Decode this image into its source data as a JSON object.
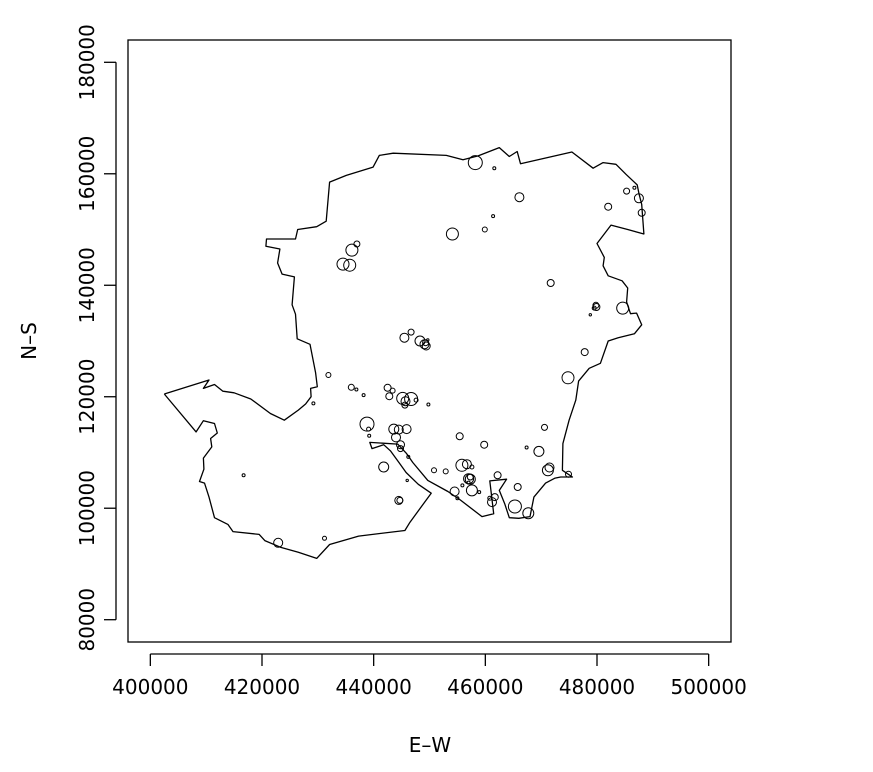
{
  "chart_data": {
    "type": "scatter",
    "title": "",
    "xlabel": "E–W",
    "ylabel": "N–S",
    "xlim": [
      396000,
      504000
    ],
    "ylim": [
      76000,
      184000
    ],
    "xticks": [
      400000,
      420000,
      440000,
      460000,
      480000,
      500000
    ],
    "yticks": [
      80000,
      100000,
      120000,
      140000,
      160000,
      180000
    ],
    "x_tick_labels": [
      "400000",
      "420000",
      "440000",
      "460000",
      "480000",
      "500000"
    ],
    "y_tick_labels": [
      "80000",
      "100000",
      "120000",
      "140000",
      "160000",
      "180000"
    ],
    "grid": false,
    "legend": "none",
    "boundary": [
      [
        402500,
        120500
      ],
      [
        410500,
        123000
      ],
      [
        409500,
        121500
      ],
      [
        411500,
        122200
      ],
      [
        413000,
        121000
      ],
      [
        415000,
        120700
      ],
      [
        418000,
        119600
      ],
      [
        421500,
        117000
      ],
      [
        424000,
        115800
      ],
      [
        426500,
        117600
      ],
      [
        427800,
        118700
      ],
      [
        428800,
        120000
      ],
      [
        428700,
        121500
      ],
      [
        429900,
        121800
      ],
      [
        429600,
        124300
      ],
      [
        428600,
        129400
      ],
      [
        426300,
        130400
      ],
      [
        426000,
        134800
      ],
      [
        425400,
        136500
      ],
      [
        425800,
        141500
      ],
      [
        423600,
        142000
      ],
      [
        422800,
        144000
      ],
      [
        423200,
        146500
      ],
      [
        420700,
        147000
      ],
      [
        420800,
        148300
      ],
      [
        426000,
        148300
      ],
      [
        426400,
        150000
      ],
      [
        429800,
        150500
      ],
      [
        431500,
        151500
      ],
      [
        432100,
        158500
      ],
      [
        435100,
        159700
      ],
      [
        439900,
        161200
      ],
      [
        441000,
        163300
      ],
      [
        443500,
        163700
      ],
      [
        453000,
        163300
      ],
      [
        456000,
        162500
      ],
      [
        458700,
        163200
      ],
      [
        462500,
        164700
      ],
      [
        464300,
        163100
      ],
      [
        465700,
        164000
      ],
      [
        466300,
        161800
      ],
      [
        475500,
        163900
      ],
      [
        479300,
        161000
      ],
      [
        481100,
        162000
      ],
      [
        483400,
        161700
      ],
      [
        485200,
        159900
      ],
      [
        487200,
        158000
      ],
      [
        487500,
        156500
      ],
      [
        488000,
        154500
      ],
      [
        488400,
        149200
      ],
      [
        485500,
        150000
      ],
      [
        482500,
        150800
      ],
      [
        480000,
        147500
      ],
      [
        481300,
        145000
      ],
      [
        481100,
        143500
      ],
      [
        482000,
        141700
      ],
      [
        484500,
        140800
      ],
      [
        485500,
        139500
      ],
      [
        485300,
        137000
      ],
      [
        486000,
        134900
      ],
      [
        487100,
        135000
      ],
      [
        488000,
        132900
      ],
      [
        486700,
        131300
      ],
      [
        483800,
        130600
      ],
      [
        482000,
        130000
      ],
      [
        480600,
        126000
      ],
      [
        478600,
        125100
      ],
      [
        476700,
        122800
      ],
      [
        476200,
        119400
      ],
      [
        475000,
        115800
      ],
      [
        473900,
        111600
      ],
      [
        473800,
        106800
      ],
      [
        475600,
        105600
      ],
      [
        473500,
        105600
      ],
      [
        472500,
        105400
      ],
      [
        470800,
        104500
      ],
      [
        468700,
        102000
      ],
      [
        468000,
        98500
      ],
      [
        466000,
        98200
      ],
      [
        464300,
        98300
      ],
      [
        463500,
        100700
      ],
      [
        462500,
        103200
      ],
      [
        463800,
        105200
      ],
      [
        460800,
        104900
      ],
      [
        461500,
        99000
      ],
      [
        459400,
        98500
      ],
      [
        455500,
        101500
      ],
      [
        453300,
        103000
      ],
      [
        449700,
        105000
      ],
      [
        447000,
        108200
      ],
      [
        445900,
        109800
      ],
      [
        444300,
        111500
      ],
      [
        439300,
        111800
      ],
      [
        439700,
        110700
      ],
      [
        441800,
        111400
      ],
      [
        443000,
        110300
      ],
      [
        444600,
        108100
      ],
      [
        445800,
        106400
      ],
      [
        448000,
        104300
      ],
      [
        450300,
        102700
      ],
      [
        446500,
        97500
      ],
      [
        445600,
        96000
      ],
      [
        437300,
        95000
      ],
      [
        435600,
        94500
      ],
      [
        432100,
        93500
      ],
      [
        429800,
        91000
      ],
      [
        426500,
        92100
      ],
      [
        423300,
        93000
      ],
      [
        420500,
        94200
      ],
      [
        419500,
        95300
      ],
      [
        414800,
        95800
      ],
      [
        413900,
        97100
      ],
      [
        411500,
        98300
      ],
      [
        410500,
        102000
      ],
      [
        409700,
        104500
      ],
      [
        408800,
        104800
      ],
      [
        409600,
        107000
      ],
      [
        409500,
        109000
      ],
      [
        411000,
        111000
      ],
      [
        410800,
        112500
      ],
      [
        412000,
        113500
      ],
      [
        411500,
        115200
      ],
      [
        409500,
        115700
      ],
      [
        408200,
        113700
      ],
      [
        402500,
        120500
      ]
    ],
    "points": [
      [
        458200,
        162000,
        7
      ],
      [
        461600,
        161000,
        1.5
      ],
      [
        466100,
        155800,
        4.5
      ],
      [
        461400,
        152400,
        1.5
      ],
      [
        459900,
        150000,
        2.5
      ],
      [
        454100,
        149200,
        6
      ],
      [
        437000,
        147400,
        3
      ],
      [
        436100,
        146300,
        6
      ],
      [
        434500,
        143800,
        6
      ],
      [
        435700,
        143600,
        6
      ],
      [
        471700,
        140400,
        3.5
      ],
      [
        485300,
        156900,
        3
      ],
      [
        486700,
        157500,
        1.5
      ],
      [
        487500,
        155600,
        4.5
      ],
      [
        488000,
        153000,
        3.5
      ],
      [
        482000,
        154100,
        3.5
      ],
      [
        479900,
        136100,
        3.5
      ],
      [
        479800,
        136400,
        3
      ],
      [
        479500,
        135900,
        2
      ],
      [
        478800,
        134700,
        1.2
      ],
      [
        484600,
        135900,
        6
      ],
      [
        477800,
        128000,
        3.5
      ],
      [
        474800,
        123400,
        6
      ],
      [
        446700,
        131600,
        3
      ],
      [
        445500,
        130600,
        4.5
      ],
      [
        448300,
        130000,
        5
      ],
      [
        449100,
        129400,
        4.5
      ],
      [
        449400,
        129100,
        4
      ],
      [
        449300,
        129700,
        3
      ],
      [
        449700,
        130200,
        1.2
      ],
      [
        431900,
        123900,
        2.5
      ],
      [
        436000,
        121700,
        3
      ],
      [
        436900,
        121300,
        1.5
      ],
      [
        442500,
        121600,
        3.5
      ],
      [
        443400,
        121100,
        2.5
      ],
      [
        442800,
        120100,
        3.5
      ],
      [
        438200,
        120300,
        1.5
      ],
      [
        429200,
        118800,
        1.5
      ],
      [
        445200,
        119700,
        6
      ],
      [
        445700,
        119200,
        4.5
      ],
      [
        446700,
        119600,
        6.5
      ],
      [
        447600,
        119400,
        2
      ],
      [
        445600,
        118500,
        3
      ],
      [
        449800,
        118600,
        1.5
      ],
      [
        438800,
        115100,
        7
      ],
      [
        439100,
        114200,
        2
      ],
      [
        439200,
        113000,
        1.5
      ],
      [
        443600,
        114200,
        5
      ],
      [
        444500,
        114100,
        4.5
      ],
      [
        445900,
        114200,
        4.5
      ],
      [
        444000,
        112700,
        4.5
      ],
      [
        444800,
        111400,
        4
      ],
      [
        444800,
        110700,
        3
      ],
      [
        446200,
        109200,
        1.5
      ],
      [
        441800,
        107400,
        5
      ],
      [
        455400,
        112900,
        3.5
      ],
      [
        459800,
        111400,
        3.5
      ],
      [
        467400,
        110900,
        1.5
      ],
      [
        469600,
        110200,
        5
      ],
      [
        470600,
        114500,
        3
      ],
      [
        455800,
        107700,
        6
      ],
      [
        456700,
        107900,
        4.5
      ],
      [
        457600,
        107400,
        2
      ],
      [
        471200,
        106800,
        5.5
      ],
      [
        471500,
        107300,
        4.5
      ],
      [
        474900,
        106100,
        3
      ],
      [
        450800,
        106800,
        2.5
      ],
      [
        452900,
        106600,
        2.5
      ],
      [
        457000,
        105300,
        5
      ],
      [
        457300,
        105200,
        5
      ],
      [
        457300,
        105600,
        3
      ],
      [
        457000,
        104600,
        1.5
      ],
      [
        462200,
        105900,
        3.5
      ],
      [
        454500,
        103000,
        4.5
      ],
      [
        455000,
        101800,
        1.5
      ],
      [
        457600,
        103200,
        5.5
      ],
      [
        458900,
        102900,
        1.5
      ],
      [
        461700,
        102000,
        3.5
      ],
      [
        460800,
        101800,
        2
      ],
      [
        461200,
        101100,
        4.5
      ],
      [
        465800,
        103800,
        3.5
      ],
      [
        465300,
        100300,
        6.5
      ],
      [
        467700,
        99100,
        5.5
      ],
      [
        444500,
        101400,
        4
      ],
      [
        444700,
        101400,
        3
      ],
      [
        431200,
        94600,
        2
      ],
      [
        422900,
        93800,
        4.5
      ],
      [
        416700,
        105900,
        1.5
      ],
      [
        446000,
        105000,
        1.2
      ],
      [
        455900,
        104100,
        1.5
      ]
    ]
  }
}
